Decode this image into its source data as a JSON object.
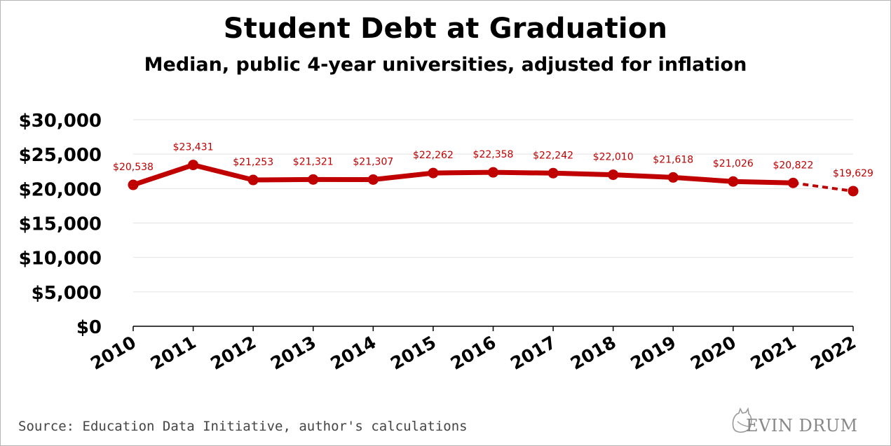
{
  "title": "Student Debt at Graduation",
  "subtitle": "Median, public 4-year universities, adjusted for inflation",
  "source": "Source: Education Data Initiative, author's calculations",
  "brand": {
    "text": "EVIN DRUM",
    "icon": "cat-icon",
    "logo_text": "KEVIN DRUM"
  },
  "colors": {
    "series": "#c00000",
    "label": "#c00000",
    "grid": "#e3e3e3",
    "axis": "#000000"
  },
  "chart_data": {
    "type": "line",
    "title": "Student Debt at Graduation",
    "subtitle": "Median, public 4-year universities, adjusted for inflation",
    "x": [
      "2010",
      "2011",
      "2012",
      "2013",
      "2014",
      "2015",
      "2016",
      "2017",
      "2018",
      "2019",
      "2020",
      "2021",
      "2022"
    ],
    "series": [
      {
        "values": [
          20538,
          23431,
          21253,
          21321,
          21307,
          22262,
          22358,
          22242,
          22010,
          21618,
          21026,
          20822,
          19629
        ],
        "data_labels": [
          "$20,538",
          "$23,431",
          "$21,253",
          "$21,321",
          "$21,307",
          "$22,262",
          "$22,358",
          "$22,242",
          "$22,010",
          "$21,618",
          "$21,026",
          "$20,822",
          "$19,629"
        ],
        "dashed_from_index": 11
      }
    ],
    "ylim": [
      0,
      30000
    ],
    "yticks": [
      0,
      5000,
      10000,
      15000,
      20000,
      25000,
      30000
    ],
    "ytick_labels": [
      "$0",
      "$5,000",
      "$10,000",
      "$15,000",
      "$20,000",
      "$25,000",
      "$30,000"
    ],
    "grid": true,
    "xlabel": "",
    "ylabel": ""
  }
}
